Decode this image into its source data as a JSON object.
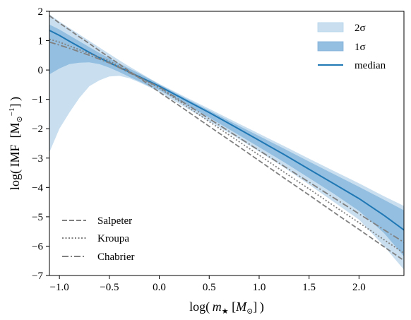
{
  "chart_data": {
    "type": "area",
    "xlim": [
      -1.1,
      2.45
    ],
    "ylim": [
      -7,
      2
    ],
    "x_ticks": [
      -1.0,
      -0.5,
      0.0,
      0.5,
      1.0,
      1.5,
      2.0
    ],
    "x_tick_labels": [
      "−1.0",
      "−0.5",
      "0.0",
      "0.5",
      "1.0",
      "1.5",
      "2.0"
    ],
    "y_ticks": [
      -7,
      -6,
      -5,
      -4,
      -3,
      -2,
      -1,
      0,
      1,
      2
    ],
    "y_tick_labels": [
      "−7",
      "−6",
      "−5",
      "−4",
      "−3",
      "−2",
      "−1",
      "0",
      "1",
      "2"
    ],
    "xlabel": {
      "pre": "log( ",
      "var": "m",
      "sub": "★",
      "mid": " [",
      "unit": "M",
      "unit_sub": "⊙",
      "post": "] )"
    },
    "ylabel": {
      "pre": "log( IMF [M",
      "sub": "⊙",
      "sup": "−1",
      "post": "] )"
    },
    "grid": false,
    "legend_top_right": {
      "position": "top-right",
      "entries": [
        {
          "label": "2σ",
          "kind": "band",
          "color": "#c9dff0"
        },
        {
          "label": "1σ",
          "kind": "band",
          "color": "#94bfe0"
        },
        {
          "label": "median",
          "kind": "line",
          "color": "#1f77b4"
        }
      ]
    },
    "legend_bottom_left": {
      "position": "bottom-left",
      "entries": [
        {
          "label": "Salpeter",
          "style": "dashed",
          "color": "#808080"
        },
        {
          "label": "Kroupa",
          "style": "dotted",
          "color": "#808080"
        },
        {
          "label": "Chabrier",
          "style": "dashdot",
          "color": "#808080"
        }
      ]
    },
    "x": [
      -1.1,
      -1.0,
      -0.9,
      -0.8,
      -0.7,
      -0.6,
      -0.5,
      -0.4,
      -0.3,
      -0.2,
      -0.1,
      0.0,
      0.25,
      0.5,
      0.75,
      1.0,
      1.25,
      1.5,
      1.75,
      2.0,
      2.25,
      2.45
    ],
    "band_2sigma": {
      "color": "#c9dff0",
      "upper": [
        1.9,
        1.65,
        1.43,
        1.21,
        0.99,
        0.77,
        0.55,
        0.33,
        0.12,
        -0.08,
        -0.28,
        -0.47,
        -0.9,
        -1.32,
        -1.75,
        -2.17,
        -2.59,
        -3.02,
        -3.44,
        -3.86,
        -4.3,
        -4.63
      ],
      "lower": [
        -2.8,
        -2.0,
        -1.45,
        -0.95,
        -0.55,
        -0.35,
        -0.22,
        -0.2,
        -0.28,
        -0.42,
        -0.58,
        -0.75,
        -1.25,
        -1.75,
        -2.25,
        -2.78,
        -3.32,
        -3.9,
        -4.5,
        -5.1,
        -6.0,
        -6.8
      ]
    },
    "band_1sigma": {
      "color": "#94bfe0",
      "upper": [
        1.55,
        1.38,
        1.18,
        0.98,
        0.78,
        0.58,
        0.4,
        0.22,
        0.05,
        -0.12,
        -0.3,
        -0.49,
        -0.94,
        -1.38,
        -1.82,
        -2.25,
        -2.68,
        -3.12,
        -3.55,
        -3.98,
        -4.42,
        -4.78
      ],
      "lower": [
        -0.15,
        0.05,
        0.2,
        0.25,
        0.26,
        0.2,
        0.08,
        -0.07,
        -0.23,
        -0.39,
        -0.55,
        -0.68,
        -1.15,
        -1.62,
        -2.12,
        -2.63,
        -3.14,
        -3.68,
        -4.22,
        -4.8,
        -5.55,
        -6.35
      ]
    },
    "series": [
      {
        "name": "median",
        "style": "solid",
        "color": "#1f77b4",
        "y": [
          1.35,
          1.18,
          0.98,
          0.79,
          0.6,
          0.42,
          0.25,
          0.09,
          -0.07,
          -0.23,
          -0.39,
          -0.55,
          -1.0,
          -1.45,
          -1.92,
          -2.4,
          -2.88,
          -3.38,
          -3.88,
          -4.38,
          -4.95,
          -5.45
        ]
      },
      {
        "name": "Salpeter",
        "style": "dashed",
        "color": "#808080",
        "y": [
          1.85,
          1.6,
          1.37,
          1.13,
          0.9,
          0.66,
          0.43,
          0.2,
          -0.04,
          -0.27,
          -0.51,
          -0.75,
          -1.33,
          -1.92,
          -2.5,
          -3.09,
          -3.68,
          -4.26,
          -4.85,
          -5.43,
          -6.02,
          -6.49
        ]
      },
      {
        "name": "Kroupa",
        "style": "dotted",
        "color": "#808080",
        "y": [
          1.05,
          0.95,
          0.82,
          0.69,
          0.56,
          0.43,
          0.31,
          0.12,
          -0.06,
          -0.24,
          -0.43,
          -0.61,
          -1.18,
          -1.76,
          -2.33,
          -2.9,
          -3.48,
          -4.05,
          -4.63,
          -5.2,
          -5.78,
          -6.24
        ]
      },
      {
        "name": "Chabrier",
        "style": "dashdot",
        "color": "#808080",
        "y": [
          0.95,
          0.85,
          0.74,
          0.62,
          0.5,
          0.37,
          0.24,
          0.08,
          -0.09,
          -0.26,
          -0.42,
          -0.58,
          -1.12,
          -1.66,
          -2.2,
          -2.74,
          -3.28,
          -3.82,
          -4.36,
          -4.9,
          -5.44,
          -5.87
        ]
      }
    ]
  }
}
